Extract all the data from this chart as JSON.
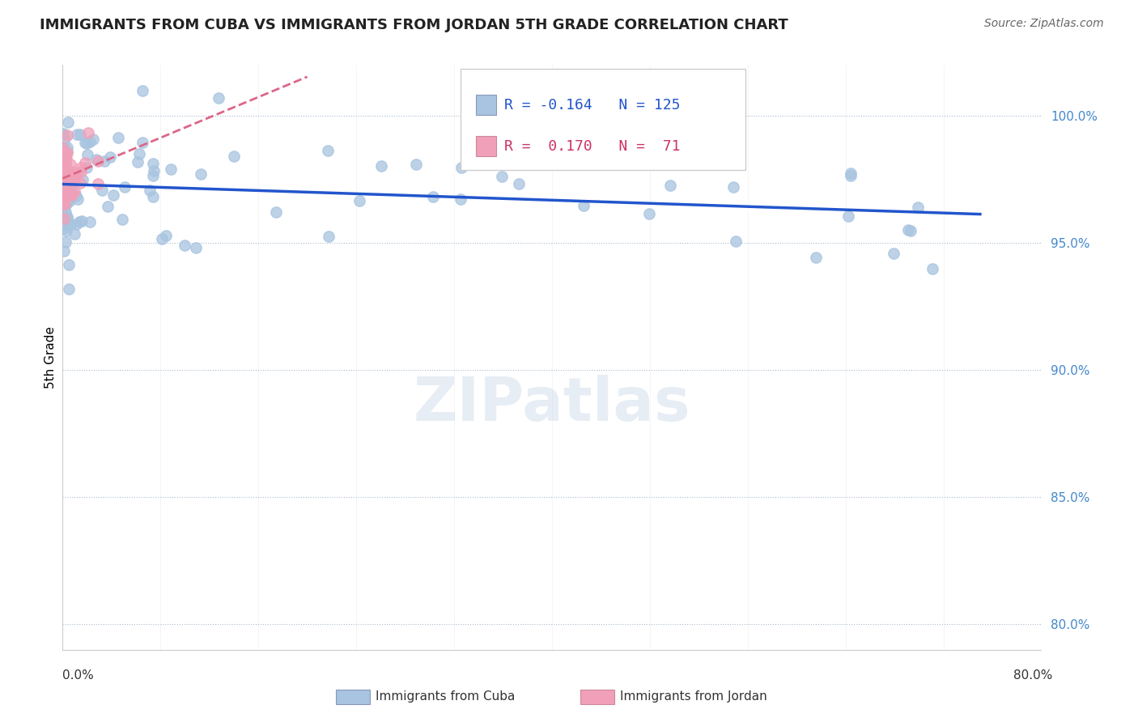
{
  "title": "IMMIGRANTS FROM CUBA VS IMMIGRANTS FROM JORDAN 5TH GRADE CORRELATION CHART",
  "source": "Source: ZipAtlas.com",
  "ylabel": "5th Grade",
  "y_ticks": [
    80.0,
    85.0,
    90.0,
    95.0,
    100.0
  ],
  "x_min": 0.0,
  "x_max": 80.0,
  "y_min": 79.0,
  "y_max": 102.0,
  "R_cuba": -0.164,
  "N_cuba": 125,
  "R_jordan": 0.17,
  "N_jordan": 71,
  "cuba_color": "#a8c4e0",
  "jordan_color": "#f0a0b8",
  "trend_cuba_color": "#2255cc",
  "trend_jordan_color": "#dd6688",
  "watermark": "ZIPatlas"
}
